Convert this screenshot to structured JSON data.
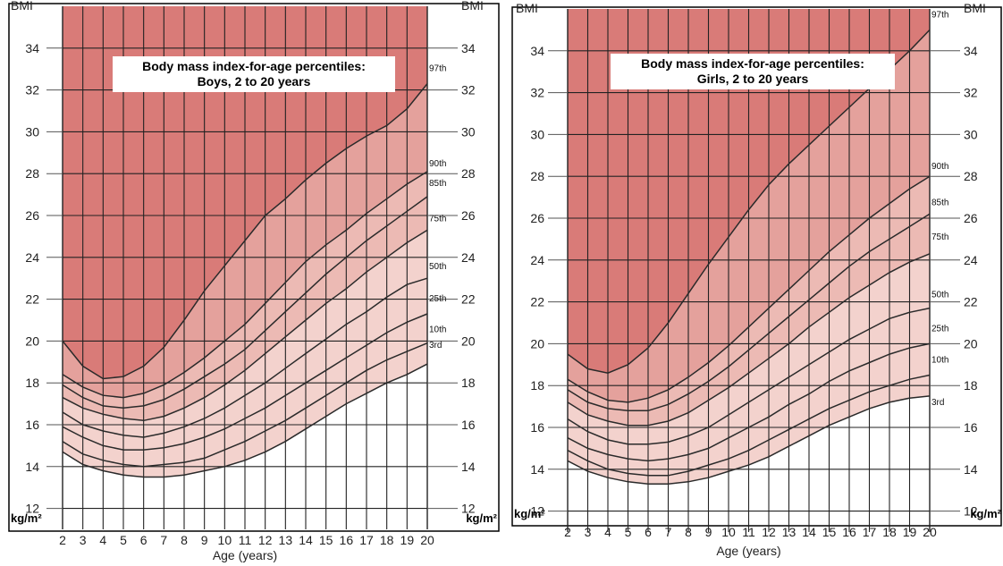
{
  "chart_data": [
    {
      "type": "line",
      "title": "Body mass index-for-age percentiles:",
      "subtitle": "Boys, 2 to 20 years",
      "xlabel": "Age (years)",
      "ylabel": "BMI",
      "yunit": "kg/m²",
      "xlim": [
        2,
        20
      ],
      "ylim": [
        11,
        36
      ],
      "xticks": [
        2,
        3,
        4,
        5,
        6,
        7,
        8,
        9,
        10,
        11,
        12,
        13,
        14,
        15,
        16,
        17,
        18,
        19,
        20
      ],
      "yticks": [
        12,
        14,
        16,
        18,
        20,
        22,
        24,
        26,
        28,
        30,
        32,
        34
      ],
      "grid": true,
      "x": [
        2,
        3,
        4,
        5,
        6,
        7,
        8,
        9,
        10,
        11,
        12,
        13,
        14,
        15,
        16,
        17,
        18,
        19,
        20
      ],
      "series": [
        {
          "name": "3rd",
          "values": [
            14.7,
            14.1,
            13.8,
            13.6,
            13.5,
            13.5,
            13.6,
            13.8,
            14.0,
            14.3,
            14.7,
            15.2,
            15.8,
            16.4,
            17.0,
            17.5,
            18.0,
            18.4,
            18.9
          ]
        },
        {
          "name": "10th",
          "values": [
            15.2,
            14.6,
            14.3,
            14.1,
            14.0,
            14.1,
            14.2,
            14.4,
            14.8,
            15.2,
            15.7,
            16.2,
            16.8,
            17.4,
            18.0,
            18.6,
            19.1,
            19.5,
            19.9
          ]
        },
        {
          "name": "25th",
          "values": [
            15.9,
            15.4,
            15.0,
            14.8,
            14.8,
            14.9,
            15.1,
            15.4,
            15.8,
            16.3,
            16.8,
            17.4,
            18.0,
            18.6,
            19.2,
            19.8,
            20.4,
            20.9,
            21.3
          ]
        },
        {
          "name": "50th",
          "values": [
            16.6,
            16.0,
            15.7,
            15.5,
            15.4,
            15.6,
            15.9,
            16.3,
            16.8,
            17.4,
            18.0,
            18.7,
            19.4,
            20.1,
            20.8,
            21.4,
            22.1,
            22.7,
            23.0
          ]
        },
        {
          "name": "75th",
          "values": [
            17.3,
            16.8,
            16.5,
            16.3,
            16.2,
            16.4,
            16.8,
            17.3,
            17.9,
            18.6,
            19.4,
            20.2,
            21.0,
            21.8,
            22.5,
            23.3,
            24.0,
            24.7,
            25.3
          ]
        },
        {
          "name": "85th",
          "values": [
            17.9,
            17.3,
            16.9,
            16.8,
            16.9,
            17.2,
            17.7,
            18.3,
            18.9,
            19.6,
            20.5,
            21.4,
            22.3,
            23.2,
            24.0,
            24.8,
            25.5,
            26.2,
            26.9
          ]
        },
        {
          "name": "90th",
          "values": [
            18.4,
            17.8,
            17.4,
            17.3,
            17.5,
            17.9,
            18.5,
            19.2,
            20.0,
            20.8,
            21.8,
            22.8,
            23.8,
            24.6,
            25.3,
            26.1,
            26.8,
            27.5,
            28.1
          ]
        },
        {
          "name": "97th",
          "values": [
            20.0,
            18.8,
            18.2,
            18.3,
            18.8,
            19.7,
            21.0,
            22.4,
            23.6,
            24.8,
            26.0,
            26.8,
            27.7,
            28.5,
            29.2,
            29.8,
            30.3,
            31.1,
            32.3
          ]
        }
      ]
    },
    {
      "type": "line",
      "title": "Body mass index-for-age percentiles:",
      "subtitle": "Girls, 2 to 20 years",
      "xlabel": "Age (years)",
      "ylabel": "BMI",
      "yunit": "kg/m²",
      "xlim": [
        2,
        20
      ],
      "ylim": [
        11,
        36
      ],
      "xticks": [
        2,
        3,
        4,
        5,
        6,
        7,
        8,
        9,
        10,
        11,
        12,
        13,
        14,
        15,
        16,
        17,
        18,
        19,
        20
      ],
      "yticks": [
        12,
        14,
        16,
        18,
        20,
        22,
        24,
        26,
        28,
        30,
        32,
        34
      ],
      "grid": true,
      "x": [
        2,
        3,
        4,
        5,
        6,
        7,
        8,
        9,
        10,
        11,
        12,
        13,
        14,
        15,
        16,
        17,
        18,
        19,
        20
      ],
      "series": [
        {
          "name": "3rd",
          "values": [
            14.4,
            13.9,
            13.6,
            13.4,
            13.3,
            13.3,
            13.4,
            13.6,
            13.9,
            14.2,
            14.6,
            15.1,
            15.6,
            16.1,
            16.5,
            16.9,
            17.2,
            17.4,
            17.5
          ]
        },
        {
          "name": "10th",
          "values": [
            14.9,
            14.4,
            14.0,
            13.8,
            13.7,
            13.7,
            13.9,
            14.2,
            14.5,
            14.9,
            15.4,
            15.9,
            16.4,
            16.9,
            17.3,
            17.7,
            18.0,
            18.3,
            18.5
          ]
        },
        {
          "name": "25th",
          "values": [
            15.5,
            15.0,
            14.7,
            14.5,
            14.4,
            14.5,
            14.7,
            15.0,
            15.5,
            16.0,
            16.5,
            17.1,
            17.6,
            18.2,
            18.7,
            19.1,
            19.5,
            19.8,
            20.0
          ]
        },
        {
          "name": "50th",
          "values": [
            16.4,
            15.8,
            15.4,
            15.2,
            15.2,
            15.3,
            15.6,
            16.0,
            16.6,
            17.2,
            17.8,
            18.4,
            19.0,
            19.6,
            20.2,
            20.7,
            21.2,
            21.5,
            21.7
          ]
        },
        {
          "name": "75th",
          "values": [
            17.2,
            16.6,
            16.3,
            16.1,
            16.1,
            16.3,
            16.7,
            17.3,
            17.9,
            18.6,
            19.3,
            20.0,
            20.8,
            21.5,
            22.2,
            22.8,
            23.4,
            23.9,
            24.3
          ]
        },
        {
          "name": "85th",
          "values": [
            17.8,
            17.2,
            16.9,
            16.8,
            16.8,
            17.1,
            17.6,
            18.2,
            18.9,
            19.7,
            20.5,
            21.3,
            22.1,
            22.9,
            23.7,
            24.4,
            25.0,
            25.6,
            26.2
          ]
        },
        {
          "name": "90th",
          "values": [
            18.3,
            17.7,
            17.3,
            17.2,
            17.4,
            17.8,
            18.4,
            19.1,
            19.9,
            20.8,
            21.7,
            22.6,
            23.5,
            24.4,
            25.2,
            26.0,
            26.7,
            27.4,
            28.0
          ]
        },
        {
          "name": "97th",
          "values": [
            19.5,
            18.8,
            18.6,
            19.0,
            19.8,
            21.0,
            22.4,
            23.8,
            25.1,
            26.4,
            27.6,
            28.6,
            29.5,
            30.4,
            31.3,
            32.2,
            33.1,
            34.0,
            35.0
          ]
        }
      ]
    }
  ]
}
